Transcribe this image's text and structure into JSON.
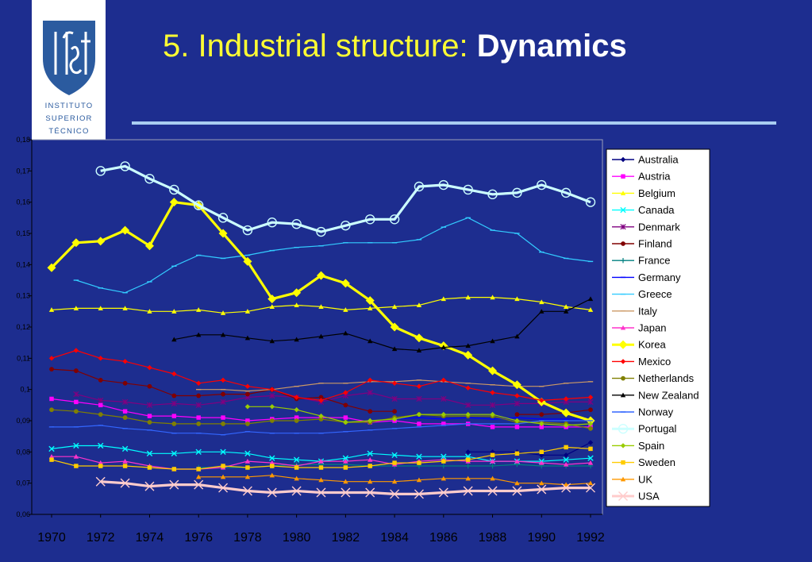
{
  "title": {
    "main": "5. Industrial structure:",
    "bold": "Dynamics"
  },
  "logo": {
    "name": "IST logo",
    "text": "INSTITUTO SUPERIOR TÉCNICO"
  },
  "colors": {
    "background": "#1d2d8f",
    "title": "#ffff33",
    "rule": "#a9cdf2",
    "plot_area": "#1d2d8f"
  },
  "chart_data": {
    "type": "line",
    "title": "",
    "xlabel": "",
    "ylabel": "",
    "x": [
      1970,
      1971,
      1972,
      1973,
      1974,
      1975,
      1976,
      1977,
      1978,
      1979,
      1980,
      1981,
      1982,
      1983,
      1984,
      1985,
      1986,
      1987,
      1988,
      1989,
      1990,
      1991,
      1992
    ],
    "xticks": [
      "1970",
      "1972",
      "1974",
      "1976",
      "1978",
      "1980",
      "1982",
      "1984",
      "1986",
      "1988",
      "1990",
      "1992"
    ],
    "yticks": [
      "0,06",
      "0,07",
      "0,08",
      "0,09",
      "0,1",
      "0,11",
      "0,12",
      "0,13",
      "0,14",
      "0,15",
      "0,16",
      "0,17",
      "0,18"
    ],
    "ylim": [
      0.06,
      0.18
    ],
    "grid": false,
    "legend_position": "right",
    "series": [
      {
        "name": "Australia",
        "color": "#000080",
        "marker": "diamond",
        "width": 1.2,
        "values": [
          null,
          null,
          null,
          null,
          null,
          null,
          null,
          null,
          null,
          null,
          null,
          null,
          null,
          null,
          null,
          null,
          null,
          0.08,
          0.08,
          0.08,
          0.079,
          0.079,
          0.083
        ]
      },
      {
        "name": "Austria",
        "color": "#ff00ff",
        "marker": "square",
        "width": 1.2,
        "values": [
          0.097,
          0.096,
          0.095,
          0.093,
          0.0915,
          0.0915,
          0.091,
          0.091,
          0.09,
          0.0905,
          0.091,
          0.091,
          0.091,
          0.0895,
          0.09,
          0.089,
          0.089,
          0.089,
          0.088,
          0.088,
          0.088,
          0.088,
          0.088
        ]
      },
      {
        "name": "Belgium",
        "color": "#ffff00",
        "marker": "triangle",
        "width": 1.2,
        "values": [
          0.1255,
          0.126,
          0.126,
          0.126,
          0.125,
          0.125,
          0.1255,
          0.1245,
          0.125,
          0.1265,
          0.127,
          0.1265,
          0.1255,
          0.126,
          0.1265,
          0.127,
          0.129,
          0.1295,
          0.1295,
          0.129,
          0.128,
          0.1265,
          0.1255
        ]
      },
      {
        "name": "Canada",
        "color": "#00ffff",
        "marker": "x",
        "width": 1.2,
        "values": [
          0.081,
          0.082,
          0.082,
          0.081,
          0.0795,
          0.0795,
          0.08,
          0.08,
          0.0795,
          0.078,
          0.0775,
          0.077,
          0.078,
          0.0795,
          0.079,
          0.0785,
          0.0785,
          0.0785,
          0.077,
          0.077,
          0.077,
          0.0775,
          0.078
        ]
      },
      {
        "name": "Denmark",
        "color": "#800080",
        "marker": "star",
        "width": 1.2,
        "values": [
          null,
          0.0985,
          0.0965,
          0.096,
          0.095,
          0.0955,
          0.095,
          0.096,
          0.0975,
          0.098,
          0.0975,
          0.096,
          0.098,
          0.099,
          0.097,
          0.097,
          0.097,
          0.095,
          0.095,
          0.0955,
          0.0955,
          0.096,
          0.096
        ]
      },
      {
        "name": "Finland",
        "color": "#800000",
        "marker": "circle",
        "width": 1.2,
        "values": [
          0.1065,
          0.106,
          0.103,
          0.102,
          0.101,
          0.098,
          0.098,
          0.0985,
          0.0985,
          0.1,
          0.097,
          0.0975,
          0.095,
          0.093,
          0.093,
          null,
          null,
          null,
          null,
          0.092,
          0.092,
          0.0925,
          0.0935
        ]
      },
      {
        "name": "France",
        "color": "#008080",
        "marker": "plus",
        "width": 1.2,
        "values": [
          null,
          null,
          null,
          null,
          null,
          null,
          0.075,
          0.075,
          0.075,
          0.0755,
          0.076,
          0.076,
          0.076,
          0.0755,
          0.0755,
          0.0755,
          0.0755,
          0.0755,
          0.0755,
          0.076,
          0.0755,
          0.0755,
          0.0755
        ]
      },
      {
        "name": "Germany",
        "color": "#0000ff",
        "marker": "dash",
        "width": 1.2,
        "values": [
          null,
          null,
          null,
          null,
          null,
          null,
          null,
          null,
          null,
          null,
          null,
          null,
          null,
          null,
          0.0905,
          0.091,
          0.0905,
          0.091,
          0.0905,
          0.091,
          0.0905,
          0.0905,
          0.0905
        ]
      },
      {
        "name": "Greece",
        "color": "#33ccff",
        "marker": "dash",
        "width": 1.2,
        "values": [
          null,
          0.135,
          0.1325,
          0.131,
          0.1345,
          0.1395,
          0.143,
          0.142,
          0.143,
          0.1445,
          0.1455,
          0.146,
          0.147,
          0.147,
          0.147,
          0.148,
          0.152,
          0.155,
          0.151,
          0.15,
          0.144,
          0.142,
          0.141
        ]
      },
      {
        "name": "Italy",
        "color": "#cc9966",
        "marker": "dash",
        "width": 1.2,
        "values": [
          null,
          null,
          null,
          null,
          null,
          null,
          0.1,
          0.1,
          0.0995,
          0.1,
          0.101,
          0.102,
          0.102,
          0.1025,
          0.1025,
          0.103,
          0.1025,
          0.102,
          0.1015,
          0.101,
          0.101,
          0.102,
          0.1025
        ]
      },
      {
        "name": "Japan",
        "color": "#ff33cc",
        "marker": "triangle",
        "width": 1.2,
        "values": [
          0.0785,
          0.0785,
          0.0765,
          0.077,
          0.0755,
          0.0745,
          0.0745,
          0.075,
          0.077,
          0.0765,
          0.0755,
          0.077,
          0.077,
          0.0775,
          0.076,
          0.077,
          0.0775,
          0.077,
          0.077,
          0.077,
          0.0765,
          0.076,
          0.0765
        ]
      },
      {
        "name": "Korea",
        "color": "#ffff00",
        "marker": "diamond",
        "width": 3.2,
        "values": [
          0.139,
          0.147,
          0.1475,
          0.151,
          0.146,
          0.16,
          0.159,
          0.15,
          0.141,
          0.129,
          0.131,
          0.1365,
          0.134,
          0.1285,
          0.12,
          0.1165,
          0.114,
          0.111,
          0.106,
          0.1015,
          0.096,
          0.0925,
          0.09
        ]
      },
      {
        "name": "Mexico",
        "color": "#ff0000",
        "marker": "diamond",
        "width": 1.2,
        "values": [
          0.11,
          0.1125,
          0.11,
          0.109,
          0.107,
          0.105,
          0.102,
          0.103,
          0.101,
          0.1,
          0.0975,
          0.0965,
          0.099,
          0.103,
          0.102,
          0.101,
          0.103,
          0.1005,
          0.099,
          0.098,
          0.0965,
          0.097,
          0.0975
        ]
      },
      {
        "name": "Netherlands",
        "color": "#808000",
        "marker": "circle",
        "width": 1.2,
        "values": [
          0.0935,
          0.093,
          0.092,
          0.091,
          0.0895,
          0.089,
          0.089,
          0.089,
          0.089,
          0.09,
          0.09,
          0.0905,
          0.0895,
          0.0895,
          0.091,
          0.092,
          0.0915,
          0.0915,
          0.0915,
          0.0895,
          0.0895,
          0.089,
          0.0875
        ]
      },
      {
        "name": "New Zealand",
        "color": "#000000",
        "marker": "triangle",
        "width": 1.2,
        "values": [
          null,
          null,
          null,
          null,
          null,
          0.116,
          0.1175,
          0.1175,
          0.1165,
          0.1155,
          0.116,
          0.117,
          0.118,
          0.1155,
          0.113,
          0.1125,
          0.1135,
          0.114,
          0.1155,
          0.117,
          0.125,
          0.125,
          0.129
        ]
      },
      {
        "name": "Norway",
        "color": "#3366ff",
        "marker": "dash",
        "width": 1.2,
        "values": [
          0.088,
          0.088,
          0.0885,
          0.0875,
          0.087,
          0.086,
          0.086,
          0.0855,
          0.0865,
          0.086,
          0.086,
          0.086,
          0.0865,
          0.087,
          0.0875,
          0.088,
          0.0885,
          0.089,
          0.089,
          0.089,
          0.09,
          0.09,
          0.09
        ]
      },
      {
        "name": "Portugal",
        "color": "#ccffff",
        "marker": "circle-open",
        "width": 3.2,
        "values": [
          null,
          null,
          0.17,
          0.1715,
          0.1675,
          0.164,
          0.159,
          0.155,
          0.151,
          0.1535,
          0.153,
          0.1505,
          0.1525,
          0.1545,
          0.1545,
          0.165,
          0.1655,
          0.164,
          0.1625,
          0.163,
          0.1655,
          0.163,
          0.16
        ]
      },
      {
        "name": "Spain",
        "color": "#99cc00",
        "marker": "diamond",
        "width": 1.2,
        "values": [
          null,
          null,
          null,
          null,
          null,
          null,
          null,
          null,
          0.0945,
          0.0945,
          0.0935,
          0.0915,
          0.0895,
          0.09,
          0.0905,
          0.092,
          0.092,
          0.092,
          0.092,
          0.09,
          0.089,
          0.0885,
          0.089
        ]
      },
      {
        "name": "Sweden",
        "color": "#ffcc00",
        "marker": "square",
        "width": 1.2,
        "values": [
          0.0775,
          0.0755,
          0.0755,
          0.0755,
          0.075,
          0.0745,
          0.0745,
          0.0755,
          0.075,
          0.0755,
          0.075,
          0.075,
          0.075,
          0.0755,
          0.0765,
          0.0765,
          0.077,
          0.0775,
          0.079,
          0.0795,
          0.08,
          0.0815,
          0.081
        ]
      },
      {
        "name": "UK",
        "color": "#ff9900",
        "marker": "triangle",
        "width": 1.2,
        "values": [
          null,
          null,
          null,
          null,
          null,
          null,
          0.072,
          0.072,
          0.072,
          0.0725,
          0.0715,
          0.071,
          0.0705,
          0.0705,
          0.0705,
          0.071,
          0.0715,
          0.0715,
          0.0715,
          0.07,
          0.07,
          0.0695,
          0.07
        ]
      },
      {
        "name": "USA",
        "color": "#ffcccc",
        "marker": "x",
        "width": 3.2,
        "values": [
          null,
          null,
          0.0705,
          0.07,
          0.069,
          0.0695,
          0.0695,
          0.0685,
          0.0675,
          0.067,
          0.0675,
          0.067,
          0.067,
          0.067,
          0.0665,
          0.0665,
          0.067,
          0.0675,
          0.0675,
          0.0675,
          0.068,
          0.0685,
          0.0685
        ]
      }
    ]
  }
}
